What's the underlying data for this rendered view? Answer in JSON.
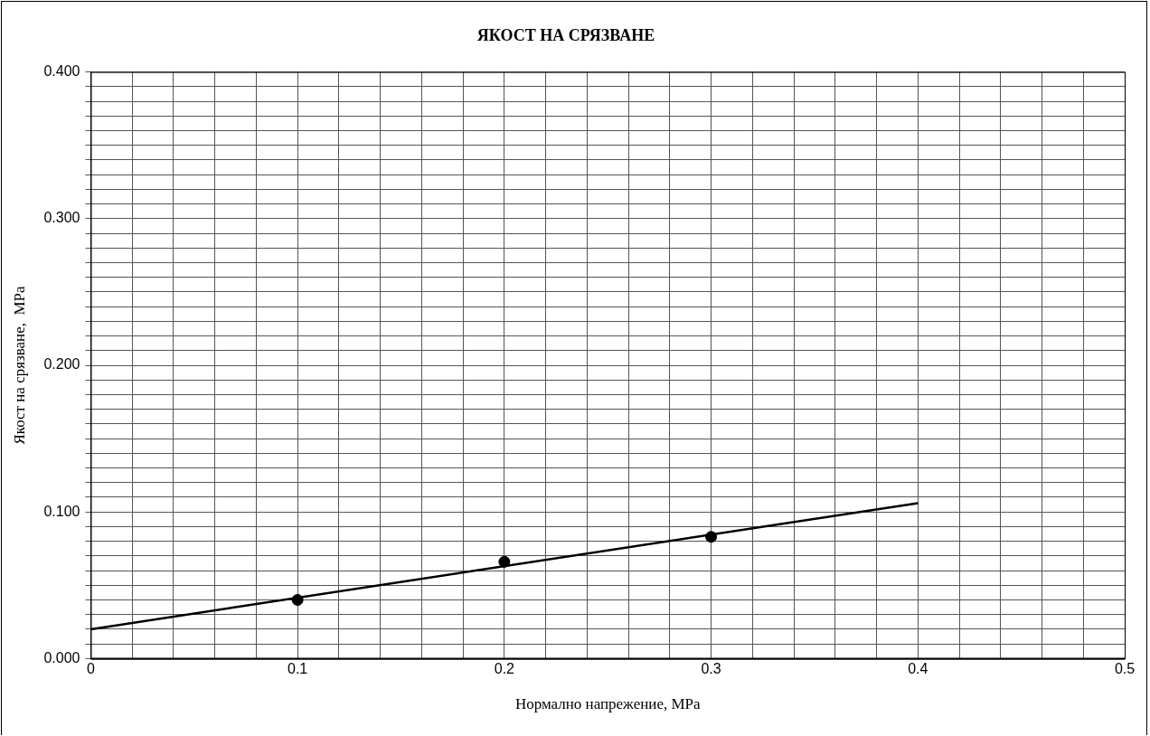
{
  "chart_data": {
    "type": "scatter",
    "title": "ЯКОСТ НА СРЯЗВАНЕ",
    "xlabel": "Нормално напрежение, MPa",
    "ylabel": "Якост на срязване,  MPa",
    "series": [
      {
        "color": "#000000",
        "marker": "circle",
        "x": [
          0.1,
          0.2,
          0.3
        ],
        "values": [
          0.04,
          0.066,
          0.083
        ]
      },
      {
        "type": "line",
        "color": "#000000",
        "marker": "none",
        "line_style": "solid",
        "x": [
          0,
          0.4
        ],
        "values": [
          0.02,
          0.106
        ]
      }
    ],
    "xlim": [
      0,
      0.5
    ],
    "xticks": [
      0,
      {
        "value": 0.02,
        "label": null
      },
      {
        "value": 0.04,
        "label": null
      },
      {
        "value": 0.06,
        "label": null
      },
      {
        "value": 0.08,
        "label": null
      },
      0.1,
      {
        "value": 0.12,
        "label": null
      },
      {
        "value": 0.14,
        "label": null
      },
      {
        "value": 0.16,
        "label": null
      },
      {
        "value": 0.18,
        "label": null
      },
      0.2,
      {
        "value": 0.22,
        "label": null
      },
      {
        "value": 0.24,
        "label": null
      },
      {
        "value": 0.26,
        "label": null
      },
      {
        "value": 0.28,
        "label": null
      },
      0.3,
      {
        "value": 0.32,
        "label": null
      },
      {
        "value": 0.34,
        "label": null
      },
      {
        "value": 0.36,
        "label": null
      },
      {
        "value": 0.38,
        "label": null
      },
      0.4,
      {
        "value": 0.42,
        "label": null
      },
      {
        "value": 0.44,
        "label": null
      },
      {
        "value": 0.46,
        "label": null
      },
      {
        "value": 0.48,
        "label": null
      },
      0.5
    ],
    "ylim": [
      0,
      0.4
    ],
    "yticks": [
      {
        "value": 0,
        "label": "0.000"
      },
      {
        "value": 0.01,
        "label": null
      },
      {
        "value": 0.02,
        "label": null
      },
      {
        "value": 0.03,
        "label": null
      },
      {
        "value": 0.04,
        "label": null
      },
      {
        "value": 0.05,
        "label": null
      },
      {
        "value": 0.06,
        "label": null
      },
      {
        "value": 0.07,
        "label": null
      },
      {
        "value": 0.08,
        "label": null
      },
      {
        "value": 0.09,
        "label": null
      },
      {
        "value": 0.1,
        "label": "0.100"
      },
      {
        "value": 0.11,
        "label": null
      },
      {
        "value": 0.12,
        "label": null
      },
      {
        "value": 0.13,
        "label": null
      },
      {
        "value": 0.14,
        "label": null
      },
      {
        "value": 0.15,
        "label": null
      },
      {
        "value": 0.16,
        "label": null
      },
      {
        "value": 0.17,
        "label": null
      },
      {
        "value": 0.18,
        "label": null
      },
      {
        "value": 0.19,
        "label": null
      },
      {
        "value": 0.2,
        "label": "0.200"
      },
      {
        "value": 0.21,
        "label": null
      },
      {
        "value": 0.22,
        "label": null
      },
      {
        "value": 0.23,
        "label": null
      },
      {
        "value": 0.24,
        "label": null
      },
      {
        "value": 0.25,
        "label": null
      },
      {
        "value": 0.26,
        "label": null
      },
      {
        "value": 0.27,
        "label": null
      },
      {
        "value": 0.28,
        "label": null
      },
      {
        "value": 0.29,
        "label": null
      },
      {
        "value": 0.3,
        "label": "0.300"
      },
      {
        "value": 0.31,
        "label": null
      },
      {
        "value": 0.32,
        "label": null
      },
      {
        "value": 0.33,
        "label": null
      },
      {
        "value": 0.34,
        "label": null
      },
      {
        "value": 0.35,
        "label": null
      },
      {
        "value": 0.36,
        "label": null
      },
      {
        "value": 0.37,
        "label": null
      },
      {
        "value": 0.38,
        "label": null
      },
      {
        "value": 0.39,
        "label": null
      },
      {
        "value": 0.4,
        "label": "0.400"
      }
    ],
    "grid": true,
    "legend": false
  }
}
